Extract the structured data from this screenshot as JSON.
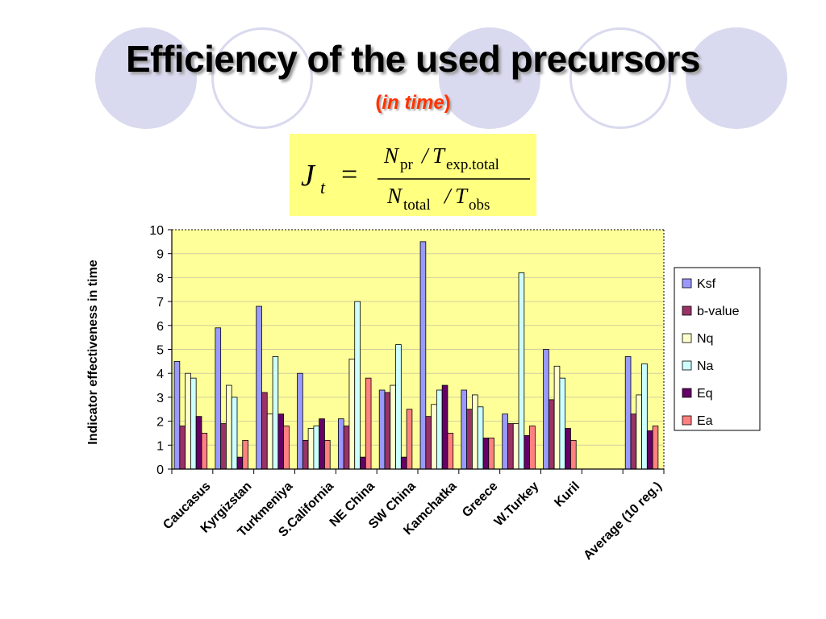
{
  "slide": {
    "title": "Efficiency of the used precursors",
    "subtitle_open": "(",
    "subtitle_text": "in time",
    "subtitle_close": ")"
  },
  "formula": {
    "lhs": "J",
    "lhs_sub": "t",
    "equals": "=",
    "num_var1": "N",
    "num_sub1": "pr",
    "num_slash": "/",
    "num_var2": "T",
    "num_sub2": "exp.total",
    "den_var1": "N",
    "den_sub1": "total",
    "den_slash": "/",
    "den_var2": "T",
    "den_sub2": "obs"
  },
  "colors": {
    "plot_background": "#ffff99",
    "formula_background": "#ffff80",
    "decoration": "#d9d9ef",
    "subtitle": "#ff3300"
  },
  "chart_data": {
    "type": "bar",
    "title": "",
    "xlabel": "",
    "ylabel": "Indicator effectiveness in time",
    "ylim": [
      0,
      10
    ],
    "yticks": [
      "0",
      "1",
      "2",
      "3",
      "4",
      "5",
      "6",
      "7",
      "8",
      "9",
      "10"
    ],
    "grid": true,
    "legend_position": "right",
    "categories": [
      "Caucasus",
      "Kyrgizstan",
      "Turkmeniya",
      "S.California",
      "NE China",
      "SW China",
      "Kamchatka",
      "Greece",
      "W.Turkey",
      "Kuril",
      "",
      "Average (10 reg.)"
    ],
    "series": [
      {
        "name": "Ksf",
        "color": "#9999ff",
        "values": [
          4.5,
          5.9,
          6.8,
          4.0,
          2.1,
          3.3,
          9.5,
          3.3,
          2.3,
          5.0,
          null,
          4.7
        ]
      },
      {
        "name": "b-value",
        "color": "#993366",
        "values": [
          1.8,
          1.9,
          3.2,
          1.2,
          1.8,
          3.2,
          2.2,
          2.5,
          1.9,
          2.9,
          null,
          2.3
        ]
      },
      {
        "name": "Nq",
        "color": "#ffffcc",
        "values": [
          4.0,
          3.5,
          2.3,
          1.7,
          4.6,
          3.5,
          2.7,
          3.1,
          1.9,
          4.3,
          null,
          3.1
        ]
      },
      {
        "name": "Na",
        "color": "#ccffff",
        "values": [
          3.8,
          3.0,
          4.7,
          1.8,
          7.0,
          5.2,
          3.3,
          2.6,
          8.2,
          3.8,
          null,
          4.4
        ]
      },
      {
        "name": "Eq",
        "color": "#660066",
        "values": [
          2.2,
          0.5,
          2.3,
          2.1,
          0.5,
          0.5,
          3.5,
          1.3,
          1.4,
          1.7,
          null,
          1.6
        ]
      },
      {
        "name": "Ea",
        "color": "#ff8080",
        "values": [
          1.5,
          1.2,
          1.8,
          1.2,
          3.8,
          2.5,
          1.5,
          1.3,
          1.8,
          1.2,
          null,
          1.8
        ]
      }
    ]
  }
}
